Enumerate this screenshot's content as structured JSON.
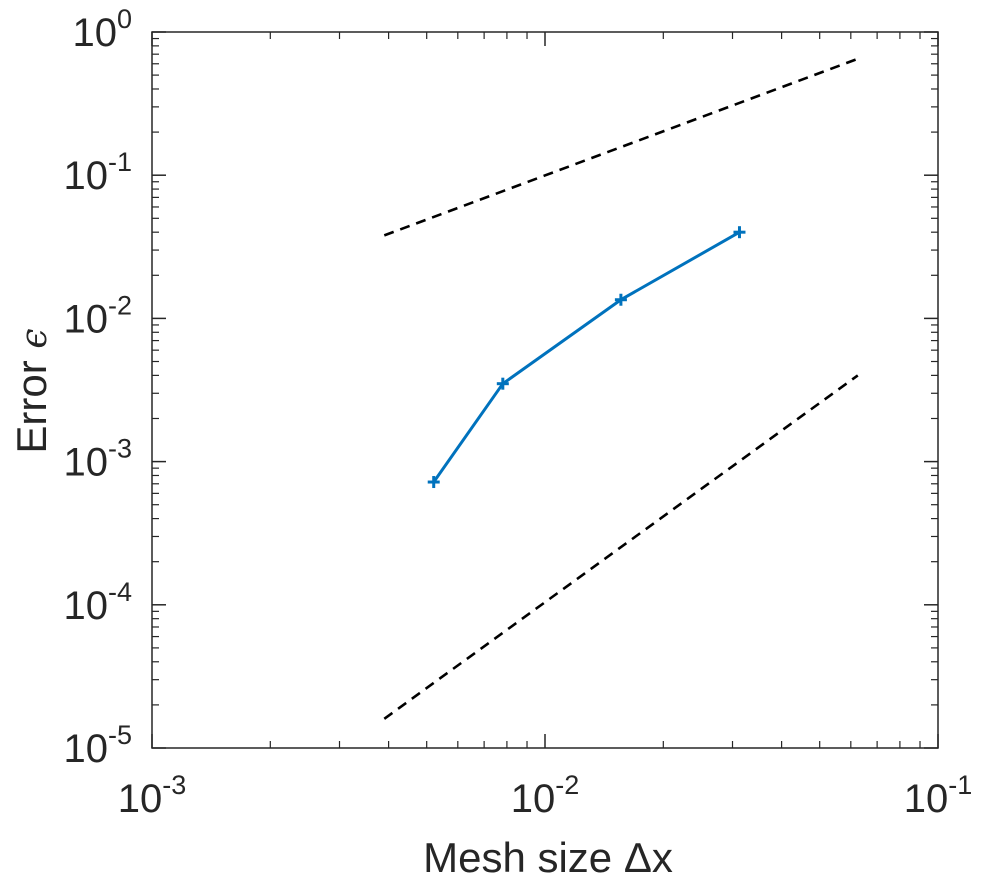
{
  "chart_data": {
    "type": "line",
    "xscale": "log",
    "yscale": "log",
    "xlim": [
      0.001,
      0.1
    ],
    "ylim": [
      1e-05,
      1
    ],
    "grid": false,
    "xlabel": "Mesh size Δx",
    "ylabel": "Error ϵ",
    "xlabel_parts": {
      "text": "Mesh size ",
      "symbol": "Δx"
    },
    "ylabel_parts": {
      "text": "Error ",
      "symbol": "ϵ"
    },
    "x_ticks": [
      {
        "value": 0.001,
        "base": "10",
        "exp": "-3"
      },
      {
        "value": 0.01,
        "base": "10",
        "exp": "-2"
      },
      {
        "value": 0.1,
        "base": "10",
        "exp": "-1"
      }
    ],
    "y_ticks": [
      {
        "value": 1,
        "base": "10",
        "exp": "0"
      },
      {
        "value": 0.1,
        "base": "10",
        "exp": "-1"
      },
      {
        "value": 0.01,
        "base": "10",
        "exp": "-2"
      },
      {
        "value": 0.001,
        "base": "10",
        "exp": "-3"
      },
      {
        "value": 0.0001,
        "base": "10",
        "exp": "-4"
      },
      {
        "value": 1e-05,
        "base": "10",
        "exp": "-5"
      }
    ],
    "series": [
      {
        "color": "#0072BD",
        "style": "solid",
        "marker": "plus",
        "x": [
          0.00521,
          0.00781,
          0.0156,
          0.03125
        ],
        "y": [
          0.00072,
          0.0035,
          0.0135,
          0.04
        ]
      },
      {
        "color": "#000000",
        "style": "dashed",
        "marker": "none",
        "x": [
          0.0039,
          0.0625
        ],
        "y": [
          0.038,
          0.65
        ]
      },
      {
        "color": "#000000",
        "style": "dashed",
        "marker": "none",
        "x": [
          0.0039,
          0.0625
        ],
        "y": [
          1.6e-05,
          0.004
        ]
      }
    ]
  }
}
